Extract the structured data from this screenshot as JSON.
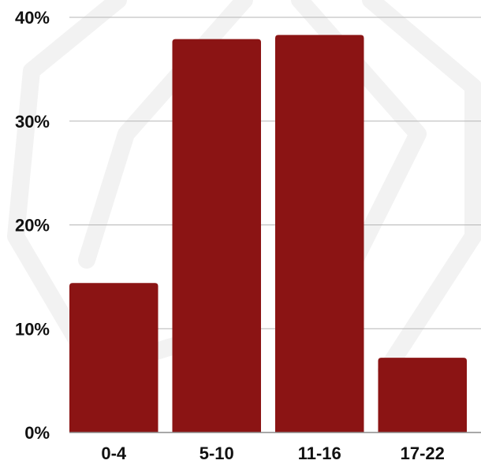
{
  "chart_data": {
    "type": "bar",
    "categories": [
      "0-4",
      "5-10",
      "11-16",
      "17-22"
    ],
    "values": [
      14.4,
      37.9,
      38.3,
      7.2
    ],
    "title": "",
    "xlabel": "",
    "ylabel": "",
    "ylim": [
      0,
      40
    ],
    "yticks": [
      0,
      10,
      20,
      30,
      40
    ],
    "ytick_labels": [
      "0%",
      "10%",
      "20%",
      "30%",
      "40%"
    ],
    "grid": true,
    "legend": "none",
    "bar_color": "#8b1414"
  }
}
